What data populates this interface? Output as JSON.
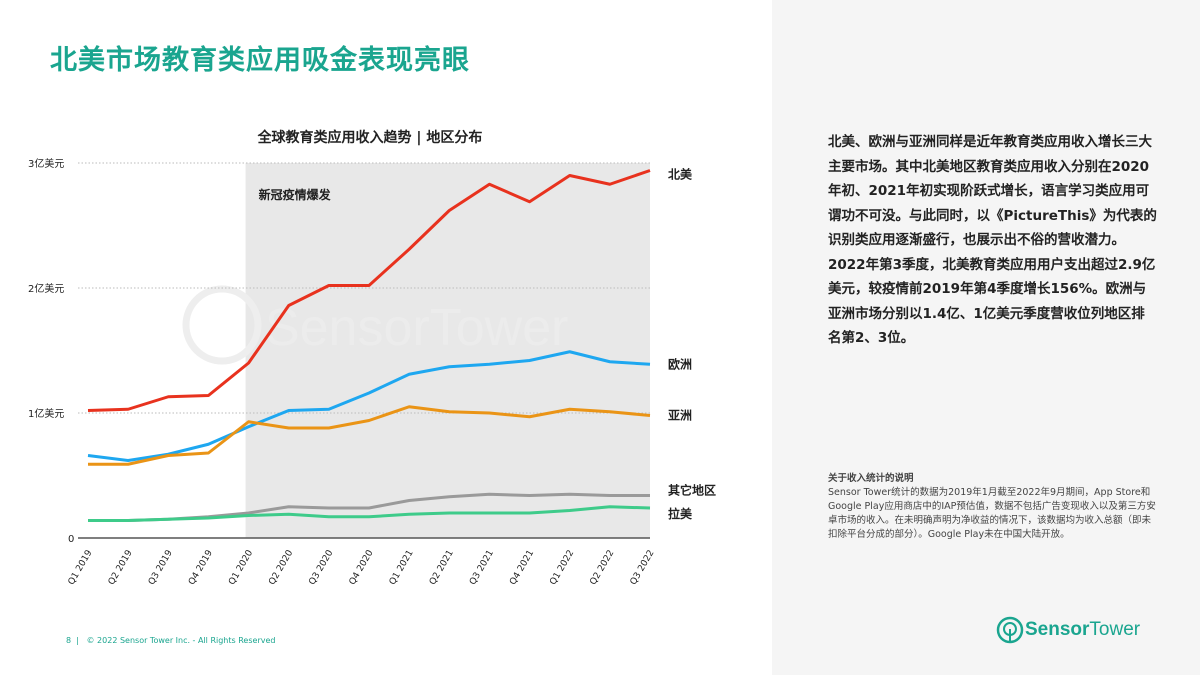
{
  "title": "北美市场教育类应用吸金表现亮眼",
  "description": "北美、欧洲与亚洲同样是近年教育类应用收入增长三大主要市场。其中北美地区教育类应用收入分别在2020年初、2021年初实现阶跃式增长，语言学习类应用可谓功不可没。与此同时，以《PictureThis》为代表的识别类应用逐渐盛行，也展示出不俗的营收潜力。2022年第3季度，北美教育类应用用户支出超过2.9亿美元，较疫情前2019年第4季度增长156%。欧洲与亚洲市场分别以1.4亿、1亿美元季度营收位列地区排名第2、3位。",
  "note": {
    "title": "关于收入统计的说明",
    "body": "Sensor Tower统计的数据为2019年1月截至2022年9月期间，App Store和Google Play应用商店中的IAP预估值，数据不包括广告变现收入以及第三方安卓市场的收入。在未明确声明为净收益的情况下，该数据均为收入总额（即未扣除平台分成的部分）。Google Play未在中国大陆开放。"
  },
  "footer": {
    "page": "8",
    "copyright": "© 2022 Sensor Tower Inc. - All Rights Reserved"
  },
  "logo": {
    "text1": "Sensor",
    "text2": "Tower"
  },
  "watermark": "SensorTower",
  "chart_data": {
    "type": "line",
    "title": "全球教育类应用收入趋势 | 地区分布",
    "categories": [
      "Q1 2019",
      "Q2 2019",
      "Q3 2019",
      "Q4 2019",
      "Q1 2020",
      "Q2 2020",
      "Q3 2020",
      "Q4 2020",
      "Q1 2021",
      "Q2 2021",
      "Q3 2021",
      "Q4 2021",
      "Q1 2022",
      "Q2 2022",
      "Q3 2022"
    ],
    "yticks": [
      {
        "value": 0,
        "label": "0"
      },
      {
        "value": 1,
        "label": "1亿美元"
      },
      {
        "value": 2,
        "label": "2亿美元"
      },
      {
        "value": 3,
        "label": "3亿美元"
      }
    ],
    "ylim": [
      0,
      3
    ],
    "grid": "dotted horizontal",
    "annotation": {
      "label": "新冠疫情爆发",
      "shaded_from": "Q1 2020",
      "shaded_to": "Q3 2022",
      "color": "#e8e8e8"
    },
    "series": [
      {
        "name": "北美",
        "color": "#e8321e",
        "values": [
          1.02,
          1.03,
          1.13,
          1.14,
          1.4,
          1.86,
          2.02,
          2.02,
          2.31,
          2.62,
          2.83,
          2.69,
          2.9,
          2.83,
          2.94
        ]
      },
      {
        "name": "欧洲",
        "color": "#1ea7f0",
        "values": [
          0.66,
          0.62,
          0.67,
          0.75,
          0.89,
          1.02,
          1.03,
          1.16,
          1.31,
          1.37,
          1.39,
          1.42,
          1.49,
          1.41,
          1.39
        ]
      },
      {
        "name": "亚洲",
        "color": "#ea9416",
        "values": [
          0.59,
          0.59,
          0.66,
          0.68,
          0.93,
          0.88,
          0.88,
          0.94,
          1.05,
          1.01,
          1.0,
          0.97,
          1.03,
          1.01,
          0.98
        ]
      },
      {
        "name": "其它地区",
        "color": "#9a9a9a",
        "values": [
          0.14,
          0.14,
          0.15,
          0.17,
          0.2,
          0.25,
          0.24,
          0.24,
          0.3,
          0.33,
          0.35,
          0.34,
          0.35,
          0.34,
          0.34
        ]
      },
      {
        "name": "拉美",
        "color": "#3ecb8a",
        "values": [
          0.14,
          0.14,
          0.15,
          0.16,
          0.18,
          0.19,
          0.17,
          0.17,
          0.19,
          0.2,
          0.2,
          0.2,
          0.22,
          0.25,
          0.24
        ]
      }
    ]
  }
}
